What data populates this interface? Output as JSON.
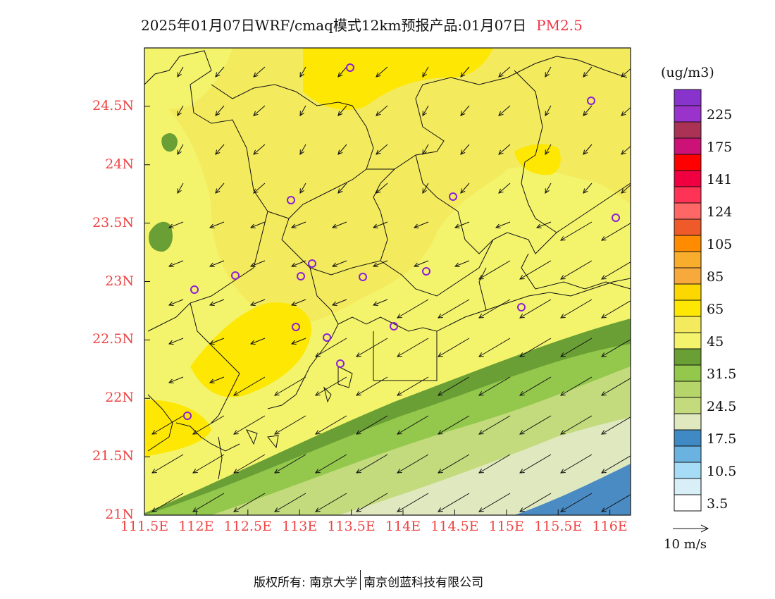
{
  "title": {
    "main": "2025年01月07日WRF/cmaq模式12km预报产品:01月07日",
    "pollutant": "PM2.5"
  },
  "map": {
    "lat_labels": [
      "24.5N",
      "24N",
      "23.5N",
      "23N",
      "22.5N",
      "22N",
      "21.5N",
      "21N"
    ],
    "lon_labels": [
      "111.5E",
      "112E",
      "112.5E",
      "113E",
      "113.5E",
      "114E",
      "114.5E",
      "115E",
      "115.5E",
      "116E"
    ],
    "lat_range": [
      21,
      25
    ],
    "lon_range": [
      111.5,
      116.2
    ],
    "colors": {
      "c45_65": "#f3ea5e",
      "c45": "#f3f46c",
      "c65": "#fde703",
      "c31": "#6a9f35",
      "c245": "#93c84c",
      "c17": "#c3db7c",
      "c35": "#dfe8bf",
      "blue": "#4a8bc4"
    }
  },
  "legend": {
    "unit": "(ug/m3)",
    "colors": [
      "#ffffff",
      "#d8eff8",
      "#a6dcf5",
      "#6ab3e0",
      "#3f8ac4",
      "#dfe8bf",
      "#c3db7c",
      "#b5d56a",
      "#93c84c",
      "#6a9f35",
      "#f3f46c",
      "#f3ea5e",
      "#fde703",
      "#fdd700",
      "#f8a93c",
      "#f8ad2c",
      "#ff8c00",
      "#ef5a2a",
      "#ff6666",
      "#ff3355",
      "#f00040",
      "#ff0000",
      "#cc1177",
      "#aa3355",
      "#9933cc",
      "#8833cc"
    ],
    "labels": [
      "3.5",
      "10.5",
      "17.5",
      "24.5",
      "31.5",
      "45",
      "65",
      "85",
      "105",
      "124",
      "141",
      "175",
      "225"
    ]
  },
  "wind_vector": {
    "label": "10 m/s"
  },
  "footer": {
    "left": "版权所有: 南京大学",
    "right": "南京创蓝科技有限公司"
  }
}
